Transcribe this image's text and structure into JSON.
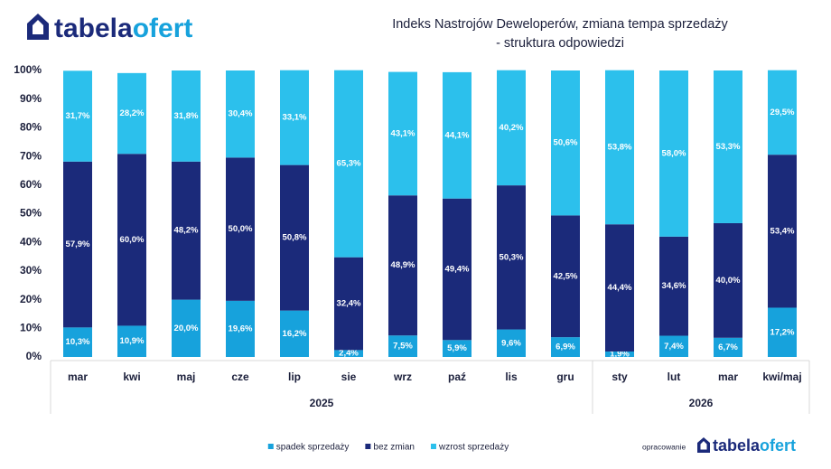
{
  "logo": [
    "tabela",
    "ofert"
  ],
  "credit": "opracowanie",
  "chart_data": {
    "type": "stacked_bar_100",
    "title": [
      "Indeks Nastrojów Deweloperów, zmiana tempa sprzedaży",
      "- struktura odpowiedzi"
    ],
    "categories": [
      "mar",
      "kwi",
      "maj",
      "cze",
      "lip",
      "sie",
      "wrz",
      "paź",
      "lis",
      "gru",
      "sty",
      "lut",
      "mar",
      "kwi/maj"
    ],
    "groups": [
      {
        "label": "2025",
        "size": 10
      },
      {
        "label": "2026",
        "size": 4
      }
    ],
    "ylim": [
      0,
      100
    ],
    "yticks": [
      {
        "value": 0,
        "label": "0%"
      },
      {
        "value": 10,
        "label": "10%"
      },
      {
        "value": 20,
        "label": "20%"
      },
      {
        "value": 30,
        "label": "30%"
      },
      {
        "value": 40,
        "label": "40%"
      },
      {
        "value": 50,
        "label": "50%"
      },
      {
        "value": 60,
        "label": "60%"
      },
      {
        "value": 70,
        "label": "70%"
      },
      {
        "value": 80,
        "label": "80%"
      },
      {
        "value": 90,
        "label": "90%"
      },
      {
        "value": 100,
        "label": "100%"
      }
    ],
    "grid": false,
    "legend": "bottom",
    "series": [
      {
        "name": "spadek sprzedaży",
        "color": "#17a2dc",
        "values": [
          10.3,
          10.9,
          20.0,
          19.6,
          16.2,
          2.4,
          7.5,
          5.9,
          9.6,
          6.9,
          1.9,
          7.4,
          6.7,
          17.2
        ],
        "value_labels": [
          "10,3%",
          "10,9%",
          "20,0%",
          "19,6%",
          "16,2%",
          "2,4%",
          "7,5%",
          "5,9%",
          "9,6%",
          "6,9%",
          "1,9%",
          "7,4%",
          "6,7%",
          "17,2%"
        ]
      },
      {
        "name": "bez zmian",
        "color": "#1b2a7a",
        "values": [
          57.9,
          60.0,
          48.2,
          50.0,
          50.8,
          32.4,
          48.9,
          49.4,
          50.3,
          42.5,
          44.4,
          34.6,
          40.0,
          53.4
        ],
        "value_labels": [
          "57,9%",
          "60,0%",
          "48,2%",
          "50,0%",
          "50,8%",
          "32,4%",
          "48,9%",
          "49,4%",
          "50,3%",
          "42,5%",
          "44,4%",
          "34,6%",
          "40,0%",
          "53,4%"
        ]
      },
      {
        "name": "wzrost sprzedaży",
        "color": "#2cc0ec",
        "values": [
          31.7,
          28.2,
          31.8,
          30.4,
          33.1,
          65.3,
          43.1,
          44.1,
          40.2,
          50.6,
          53.8,
          58.0,
          53.3,
          29.5
        ],
        "value_labels": [
          "31,7%",
          "28,2%",
          "31,8%",
          "30,4%",
          "33,1%",
          "65,3%",
          "43,1%",
          "44,1%",
          "40,2%",
          "50,6%",
          "53,8%",
          "58,0%",
          "53,3%",
          "29,5%"
        ]
      }
    ]
  }
}
